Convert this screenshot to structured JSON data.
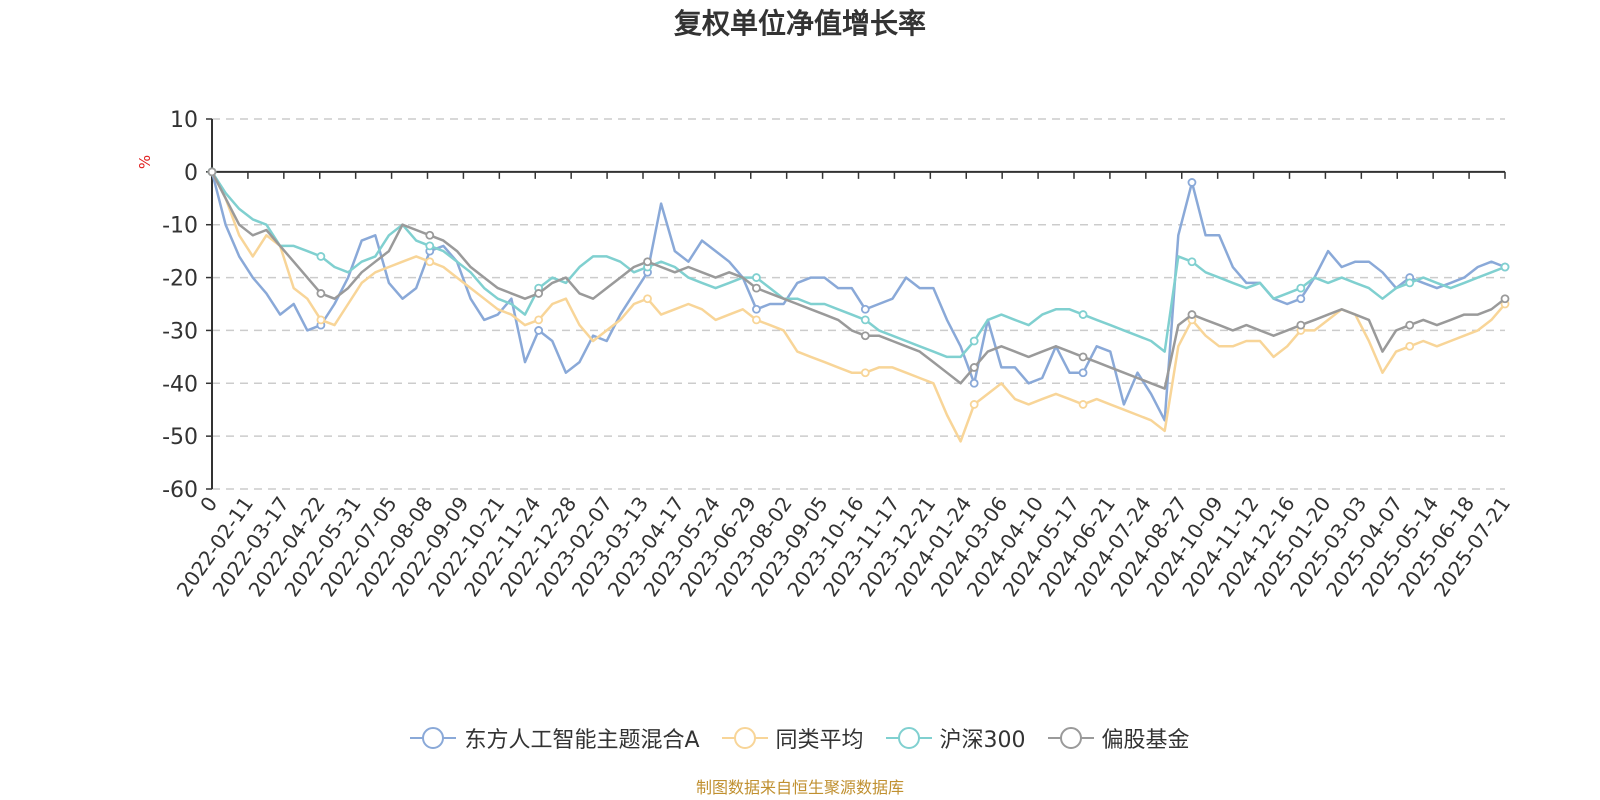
{
  "chart_data": {
    "type": "line",
    "title": "复权单位净值增长率",
    "ylabel": "%",
    "ylim": [
      -60,
      10
    ],
    "yticks": [
      10,
      0,
      -10,
      -20,
      -30,
      -40,
      -50,
      -60
    ],
    "xticks": [
      "0",
      "2022-02-11",
      "2022-03-17",
      "2022-04-22",
      "2022-05-31",
      "2022-07-05",
      "2022-08-08",
      "2022-09-09",
      "2022-10-21",
      "2022-11-24",
      "2022-12-28",
      "2023-02-07",
      "2023-03-13",
      "2023-04-17",
      "2023-05-24",
      "2023-06-29",
      "2023-08-02",
      "2023-09-05",
      "2023-10-16",
      "2023-11-17",
      "2023-12-21",
      "2024-01-24",
      "2024-03-06",
      "2024-04-10",
      "2024-05-17",
      "2024-06-21",
      "2024-07-24",
      "2024-08-27",
      "2024-10-09",
      "2024-11-12",
      "2024-12-16",
      "2025-01-20",
      "2025-03-03",
      "2025-04-07",
      "2025-05-14",
      "2025-06-18",
      "2025-07-21"
    ],
    "grid": "dashed horizontal",
    "legend_position": "bottom",
    "series": [
      {
        "name": "东方人工智能主题混合A",
        "color": "#8aa9d8",
        "values": [
          0,
          -10,
          -16,
          -20,
          -23,
          -27,
          -25,
          -30,
          -29,
          -25,
          -20,
          -13,
          -12,
          -21,
          -24,
          -22,
          -15,
          -14,
          -17,
          -24,
          -28,
          -27,
          -24,
          -36,
          -30,
          -32,
          -38,
          -36,
          -31,
          -32,
          -27,
          -23,
          -19,
          -6,
          -15,
          -17,
          -13,
          -15,
          -17,
          -20,
          -26,
          -25,
          -25,
          -21,
          -20,
          -20,
          -22,
          -22,
          -26,
          -25,
          -24,
          -20,
          -22,
          -22,
          -28,
          -33,
          -40,
          -28,
          -37,
          -37,
          -40,
          -39,
          -33,
          -38,
          -38,
          -33,
          -34,
          -44,
          -38,
          -42,
          -47,
          -12,
          -2,
          -12,
          -12,
          -18,
          -21,
          -21,
          -24,
          -25,
          -24,
          -20,
          -15,
          -18,
          -17,
          -17,
          -19,
          -22,
          -20,
          -21,
          -22,
          -21,
          -20,
          -18,
          -17,
          -18
        ]
      },
      {
        "name": "同类平均",
        "color": "#f8d598",
        "values": [
          0,
          -5,
          -12,
          -16,
          -12,
          -14,
          -22,
          -24,
          -28,
          -29,
          -25,
          -21,
          -19,
          -18,
          -17,
          -16,
          -17,
          -18,
          -20,
          -22,
          -24,
          -26,
          -27,
          -29,
          -28,
          -25,
          -24,
          -29,
          -32,
          -30,
          -28,
          -25,
          -24,
          -27,
          -26,
          -25,
          -26,
          -28,
          -27,
          -26,
          -28,
          -29,
          -30,
          -34,
          -35,
          -36,
          -37,
          -38,
          -38,
          -37,
          -37,
          -38,
          -39,
          -40,
          -46,
          -51,
          -44,
          -42,
          -40,
          -43,
          -44,
          -43,
          -42,
          -43,
          -44,
          -43,
          -44,
          -45,
          -46,
          -47,
          -49,
          -33,
          -28,
          -31,
          -33,
          -33,
          -32,
          -32,
          -35,
          -33,
          -30,
          -30,
          -28,
          -26,
          -27,
          -32,
          -38,
          -34,
          -33,
          -32,
          -33,
          -32,
          -31,
          -30,
          -28,
          -25
        ]
      },
      {
        "name": "沪深300",
        "color": "#80d0d0",
        "values": [
          0,
          -4,
          -7,
          -9,
          -10,
          -14,
          -14,
          -15,
          -16,
          -18,
          -19,
          -17,
          -16,
          -12,
          -10,
          -13,
          -14,
          -15,
          -17,
          -19,
          -22,
          -24,
          -25,
          -27,
          -22,
          -20,
          -21,
          -18,
          -16,
          -16,
          -17,
          -19,
          -18,
          -17,
          -18,
          -20,
          -21,
          -22,
          -21,
          -20,
          -20,
          -22,
          -24,
          -24,
          -25,
          -25,
          -26,
          -27,
          -28,
          -30,
          -31,
          -32,
          -33,
          -34,
          -35,
          -35,
          -32,
          -28,
          -27,
          -28,
          -29,
          -27,
          -26,
          -26,
          -27,
          -28,
          -29,
          -30,
          -31,
          -32,
          -34,
          -16,
          -17,
          -19,
          -20,
          -21,
          -22,
          -21,
          -24,
          -23,
          -22,
          -20,
          -21,
          -20,
          -21,
          -22,
          -24,
          -22,
          -21,
          -20,
          -21,
          -22,
          -21,
          -20,
          -19,
          -18
        ]
      },
      {
        "name": "偏股基金",
        "color": "#9a9a9a",
        "values": [
          0,
          -5,
          -10,
          -12,
          -11,
          -14,
          -17,
          -20,
          -23,
          -24,
          -22,
          -19,
          -17,
          -15,
          -10,
          -11,
          -12,
          -13,
          -15,
          -18,
          -20,
          -22,
          -23,
          -24,
          -23,
          -21,
          -20,
          -23,
          -24,
          -22,
          -20,
          -18,
          -17,
          -18,
          -19,
          -18,
          -19,
          -20,
          -19,
          -20,
          -22,
          -23,
          -24,
          -25,
          -26,
          -27,
          -28,
          -30,
          -31,
          -31,
          -32,
          -33,
          -34,
          -36,
          -38,
          -40,
          -37,
          -34,
          -33,
          -34,
          -35,
          -34,
          -33,
          -34,
          -35,
          -36,
          -37,
          -38,
          -39,
          -40,
          -41,
          -29,
          -27,
          -28,
          -29,
          -30,
          -29,
          -30,
          -31,
          -30,
          -29,
          -28,
          -27,
          -26,
          -27,
          -28,
          -34,
          -30,
          -29,
          -28,
          -29,
          -28,
          -27,
          -27,
          -26,
          -24
        ]
      }
    ]
  },
  "source_note": "制图数据来自恒生聚源数据库"
}
